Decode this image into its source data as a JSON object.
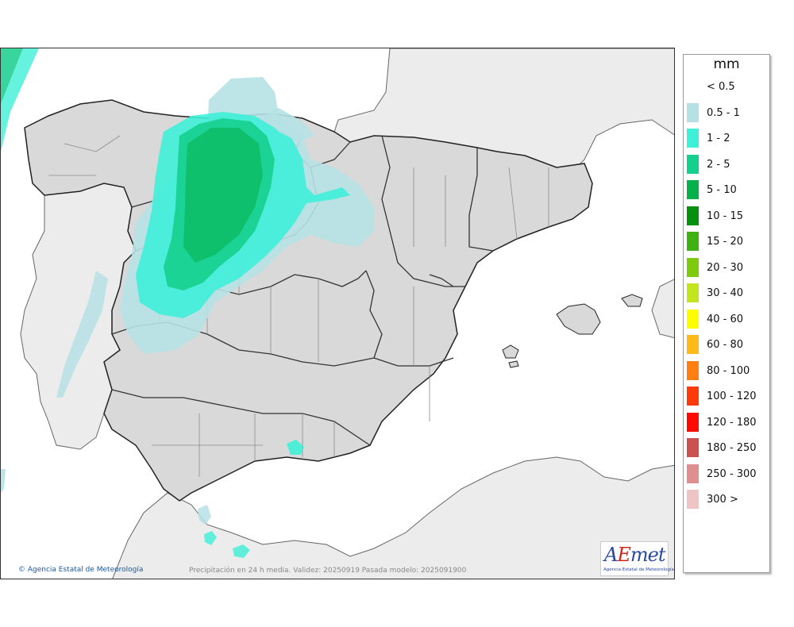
{
  "map": {
    "credit": "Agencia Estatal de Meteorología",
    "caption": "Precipitación en 24 h media. Validez: 20250919 Pasada modelo: 2025091900",
    "logo": {
      "text_a": "A",
      "text_e": "E",
      "text_rest": "met",
      "subtitle": "Agencia Estatal de Meteorología"
    },
    "colors": {
      "sea": "#ffffff",
      "land": "#d9d9d9",
      "foreign_land": "#ececec",
      "border": "#222222"
    }
  },
  "legend": {
    "unit": "mm",
    "classes": [
      {
        "label": "< 0.5",
        "color": null
      },
      {
        "label": "0.5 - 1",
        "color": "#b6e1e4"
      },
      {
        "label": "1 - 2",
        "color": "#3ff0d8"
      },
      {
        "label": "2 - 5",
        "color": "#15cf8c"
      },
      {
        "label": "5 - 10",
        "color": "#06b04a"
      },
      {
        "label": "10 - 15",
        "color": "#078f10"
      },
      {
        "label": "15 - 20",
        "color": "#3fb212"
      },
      {
        "label": "20 - 30",
        "color": "#7dcb0c"
      },
      {
        "label": "30 - 40",
        "color": "#c3e51f"
      },
      {
        "label": "40 - 60",
        "color": "#fffe00"
      },
      {
        "label": "60 - 80",
        "color": "#ffb918"
      },
      {
        "label": "80 - 100",
        "color": "#ff7f12"
      },
      {
        "label": "100 - 120",
        "color": "#ff3b0b"
      },
      {
        "label": "120 - 180",
        "color": "#ff0a00"
      },
      {
        "label": "180 - 250",
        "color": "#cc5252"
      },
      {
        "label": "250 - 300",
        "color": "#e08f8f"
      },
      {
        "label": "300 >",
        "color": "#efc4c4"
      }
    ]
  }
}
